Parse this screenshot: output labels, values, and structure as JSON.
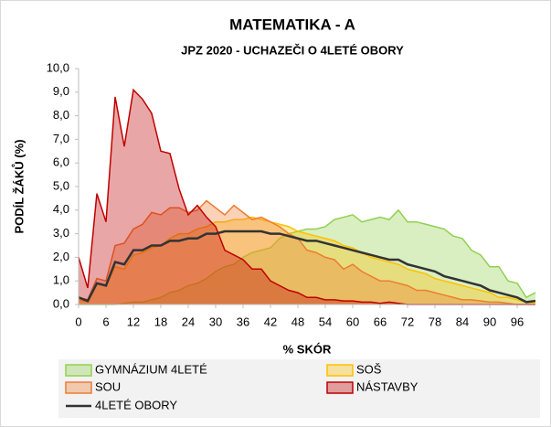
{
  "chart_data": {
    "type": "area",
    "title": "MATEMATIKA - A",
    "subtitle": "JPZ 2020 - UCHAZEČI O 4LETÉ OBORY",
    "x_label": "% SKÓR",
    "y_label": "PODÍL ŽÁKŮ (%)",
    "x": [
      0,
      2,
      4,
      6,
      8,
      10,
      12,
      14,
      16,
      18,
      20,
      22,
      24,
      26,
      28,
      30,
      32,
      34,
      36,
      38,
      40,
      42,
      44,
      46,
      48,
      50,
      52,
      54,
      56,
      58,
      60,
      62,
      64,
      66,
      68,
      70,
      72,
      74,
      76,
      78,
      80,
      82,
      84,
      86,
      88,
      90,
      92,
      94,
      96,
      98,
      100
    ],
    "xlim": [
      0,
      100
    ],
    "xticks": [
      0,
      6,
      12,
      18,
      24,
      30,
      36,
      42,
      48,
      54,
      60,
      66,
      72,
      78,
      84,
      90,
      96
    ],
    "ylim": [
      0,
      10
    ],
    "yticks": [
      {
        "value": 0,
        "label": "0,0"
      },
      {
        "value": 1,
        "label": "1,0"
      },
      {
        "value": 2,
        "label": "2,0"
      },
      {
        "value": 3,
        "label": "3,0"
      },
      {
        "value": 4,
        "label": "4,0"
      },
      {
        "value": 5,
        "label": "5,0"
      },
      {
        "value": 6,
        "label": "6,0"
      },
      {
        "value": 7,
        "label": "7,0"
      },
      {
        "value": 8,
        "label": "8,0"
      },
      {
        "value": 9,
        "label": "9,0"
      },
      {
        "value": 10,
        "label": "10,0"
      }
    ],
    "series": [
      {
        "name": "GYMNÁZIUM 4LETÉ",
        "color": "#92d050",
        "type": "area",
        "values": [
          0,
          0,
          0,
          0,
          0,
          0.05,
          0.1,
          0.1,
          0.2,
          0.3,
          0.5,
          0.6,
          0.8,
          0.9,
          1.1,
          1.4,
          1.6,
          1.7,
          2.0,
          2.2,
          2.3,
          2.4,
          2.8,
          3.0,
          3.1,
          3.2,
          3.2,
          3.3,
          3.6,
          3.7,
          3.8,
          3.5,
          3.6,
          3.7,
          3.6,
          4.0,
          3.5,
          3.5,
          3.4,
          3.3,
          3.2,
          2.9,
          2.8,
          2.3,
          2.1,
          1.6,
          1.6,
          1.0,
          0.9,
          0.3,
          0.5
        ]
      },
      {
        "name": "SOŠ",
        "color": "#ffc000",
        "type": "area",
        "values": [
          0.2,
          0.1,
          0.9,
          0.8,
          1.6,
          1.5,
          2.1,
          2.2,
          2.4,
          2.5,
          2.8,
          3.0,
          3.0,
          3.2,
          3.3,
          3.5,
          3.5,
          3.6,
          3.6,
          3.7,
          3.6,
          3.5,
          3.4,
          3.3,
          3.1,
          3.0,
          2.9,
          2.8,
          2.7,
          2.5,
          2.4,
          2.2,
          2.0,
          1.9,
          1.8,
          1.7,
          1.5,
          1.4,
          1.3,
          1.1,
          1.0,
          0.9,
          0.8,
          0.7,
          0.6,
          0.5,
          0.3,
          0.3,
          0.2,
          0.1,
          0.05
        ]
      },
      {
        "name": "SOU",
        "color": "#ed7d31",
        "type": "area",
        "values": [
          0.3,
          0.2,
          1.1,
          1.0,
          2.5,
          2.6,
          3.2,
          3.4,
          3.9,
          3.8,
          4.1,
          4.1,
          3.9,
          4.0,
          4.4,
          4.1,
          3.8,
          4.2,
          3.9,
          3.6,
          3.7,
          3.5,
          3.3,
          3.0,
          2.8,
          2.3,
          2.2,
          2.0,
          1.9,
          1.5,
          1.7,
          1.4,
          1.2,
          1.0,
          1.0,
          0.9,
          0.8,
          0.6,
          0.6,
          0.5,
          0.4,
          0.3,
          0.2,
          0.2,
          0.15,
          0.1,
          0.1,
          0.05,
          0,
          0,
          0
        ]
      },
      {
        "name": "NÁSTAVBY",
        "color": "#c00000",
        "type": "area",
        "values": [
          2.0,
          0.7,
          4.7,
          3.5,
          8.8,
          6.7,
          9.1,
          8.7,
          8.1,
          6.5,
          6.4,
          4.9,
          3.8,
          4.2,
          3.7,
          3.3,
          2.3,
          2.1,
          1.9,
          1.5,
          1.5,
          1.0,
          0.8,
          0.6,
          0.5,
          0.3,
          0.3,
          0.2,
          0.2,
          0.15,
          0.15,
          0.1,
          0.1,
          0.05,
          0.1,
          0.05,
          0,
          0,
          0,
          0,
          0,
          0,
          0,
          0,
          0,
          0,
          0,
          0,
          0,
          0,
          0
        ]
      },
      {
        "name": "4LETÉ OBORY",
        "color": "#333333",
        "type": "line",
        "values": [
          0.3,
          0.15,
          0.9,
          0.8,
          1.8,
          1.7,
          2.3,
          2.3,
          2.5,
          2.5,
          2.7,
          2.7,
          2.8,
          2.8,
          3.0,
          3.0,
          3.1,
          3.1,
          3.1,
          3.1,
          3.1,
          3.0,
          3.0,
          2.9,
          2.8,
          2.7,
          2.7,
          2.6,
          2.5,
          2.4,
          2.3,
          2.2,
          2.1,
          2.0,
          1.9,
          1.9,
          1.7,
          1.6,
          1.5,
          1.4,
          1.2,
          1.1,
          1.0,
          0.9,
          0.8,
          0.6,
          0.5,
          0.4,
          0.3,
          0.1,
          0.15
        ]
      }
    ]
  }
}
